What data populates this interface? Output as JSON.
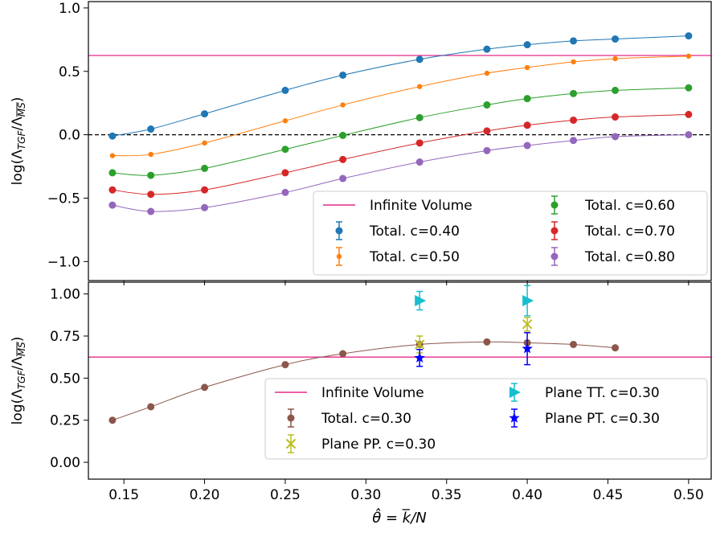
{
  "colors": {
    "infinite_volume": "#e7298a",
    "c040": "#1f77b4",
    "c050": "#ff7f0e",
    "c060": "#2ca02c",
    "c070": "#d62728",
    "c080": "#9467bd",
    "c030": "#8c564b",
    "plane_pp": "#bcbd22",
    "plane_tt": "#17becf",
    "plane_pt": "#0000ff"
  },
  "chart_data": [
    {
      "type": "line",
      "ylabel": "log(Λ_TGF/Λ_MS)",
      "ylim": [
        -1.15,
        1.05
      ],
      "xlim": [
        0.128,
        0.514
      ],
      "y_ticks": [
        "−1.0",
        "−0.5",
        "0.0",
        "0.5",
        "1.0"
      ],
      "y_tick_values": [
        -1.0,
        -0.5,
        0.0,
        0.5,
        1.0
      ],
      "zero_reference_line": 0.0,
      "infinite_volume": 0.625,
      "legend_position": "lower-right",
      "legend": [
        {
          "label": "Infinite Volume",
          "kind": "line",
          "color_key": "infinite_volume"
        },
        {
          "label": "Total. c=0.40",
          "kind": "marker",
          "color_key": "c040"
        },
        {
          "label": "Total. c=0.50",
          "kind": "marker-small",
          "color_key": "c050"
        },
        {
          "label": "Total. c=0.60",
          "kind": "marker",
          "color_key": "c060"
        },
        {
          "label": "Total. c=0.70",
          "kind": "marker",
          "color_key": "c070"
        },
        {
          "label": "Total. c=0.80",
          "kind": "marker",
          "color_key": "c080"
        }
      ],
      "series": [
        {
          "name": "Total. c=0.40",
          "color_key": "c040",
          "small": false,
          "x": [
            0.1429,
            0.1667,
            0.2,
            0.25,
            0.2857,
            0.3333,
            0.375,
            0.4,
            0.4286,
            0.4545,
            0.5
          ],
          "y": [
            -0.01,
            0.045,
            0.165,
            0.35,
            0.47,
            0.595,
            0.675,
            0.71,
            0.74,
            0.755,
            0.78
          ]
        },
        {
          "name": "Total. c=0.50",
          "color_key": "c050",
          "small": true,
          "x": [
            0.1429,
            0.1667,
            0.2,
            0.25,
            0.2857,
            0.3333,
            0.375,
            0.4,
            0.4286,
            0.4545,
            0.5
          ],
          "y": [
            -0.165,
            -0.155,
            -0.065,
            0.11,
            0.235,
            0.38,
            0.485,
            0.53,
            0.575,
            0.6,
            0.62
          ]
        },
        {
          "name": "Total. c=0.60",
          "color_key": "c060",
          "small": false,
          "x": [
            0.1429,
            0.1667,
            0.2,
            0.25,
            0.2857,
            0.3333,
            0.375,
            0.4,
            0.4286,
            0.4545,
            0.5
          ],
          "y": [
            -0.3,
            -0.32,
            -0.265,
            -0.115,
            -0.005,
            0.135,
            0.235,
            0.285,
            0.325,
            0.35,
            0.37
          ]
        },
        {
          "name": "Total. c=0.70",
          "color_key": "c070",
          "small": false,
          "x": [
            0.1429,
            0.1667,
            0.2,
            0.25,
            0.2857,
            0.3333,
            0.375,
            0.4,
            0.4286,
            0.4545,
            0.5
          ],
          "y": [
            -0.435,
            -0.47,
            -0.435,
            -0.3,
            -0.195,
            -0.065,
            0.03,
            0.075,
            0.115,
            0.14,
            0.16
          ]
        },
        {
          "name": "Total. c=0.80",
          "color_key": "c080",
          "small": false,
          "x": [
            0.1429,
            0.1667,
            0.2,
            0.25,
            0.2857,
            0.3333,
            0.375,
            0.4,
            0.4286,
            0.4545,
            0.5
          ],
          "y": [
            -0.555,
            -0.605,
            -0.575,
            -0.455,
            -0.345,
            -0.215,
            -0.125,
            -0.085,
            -0.045,
            -0.015,
            0.0
          ]
        }
      ]
    },
    {
      "type": "line",
      "xlabel": "θ̂ = k̅/N",
      "ylabel": "log(Λ_TGF/Λ_MS)",
      "ylim": [
        -0.1,
        1.07
      ],
      "xlim": [
        0.128,
        0.514
      ],
      "x_ticks": [
        "0.15",
        "0.20",
        "0.25",
        "0.30",
        "0.35",
        "0.40",
        "0.45",
        "0.50"
      ],
      "x_tick_values": [
        0.15,
        0.2,
        0.25,
        0.3,
        0.35,
        0.4,
        0.45,
        0.5
      ],
      "y_ticks": [
        "0.00",
        "0.25",
        "0.50",
        "0.75",
        "1.00"
      ],
      "y_tick_values": [
        0.0,
        0.25,
        0.5,
        0.75,
        1.0
      ],
      "infinite_volume": 0.625,
      "legend_position": "lower-right",
      "legend": [
        {
          "label": "Infinite Volume",
          "kind": "line",
          "color_key": "infinite_volume"
        },
        {
          "label": "Total. c=0.30",
          "kind": "marker",
          "color_key": "c030"
        },
        {
          "label": "Plane PP. c=0.30",
          "kind": "x",
          "color_key": "plane_pp"
        },
        {
          "label": "Plane TT. c=0.30",
          "kind": "triangle",
          "color_key": "plane_tt"
        },
        {
          "label": "Plane PT. c=0.30",
          "kind": "star",
          "color_key": "plane_pt"
        }
      ],
      "series": [
        {
          "name": "Total. c=0.30",
          "color_key": "c030",
          "marker": "circle",
          "x": [
            0.1429,
            0.1667,
            0.2,
            0.25,
            0.2857,
            0.3333,
            0.375,
            0.4,
            0.4286,
            0.4545
          ],
          "y": [
            0.25,
            0.33,
            0.445,
            0.58,
            0.645,
            0.7,
            0.715,
            0.71,
            0.7,
            0.68
          ]
        },
        {
          "name": "Plane PP. c=0.30",
          "color_key": "plane_pp",
          "marker": "x",
          "x": [
            0.3333,
            0.4
          ],
          "y": [
            0.7,
            0.82
          ],
          "err": [
            0.05,
            0.04
          ]
        },
        {
          "name": "Plane TT. c=0.30",
          "color_key": "plane_tt",
          "marker": "triangle",
          "x": [
            0.3333,
            0.4
          ],
          "y": [
            0.96,
            0.96
          ],
          "err": [
            0.055,
            0.09
          ]
        },
        {
          "name": "Plane PT. c=0.30",
          "color_key": "plane_pt",
          "marker": "star",
          "x": [
            0.3333,
            0.4
          ],
          "y": [
            0.62,
            0.675
          ],
          "err": [
            0.05,
            0.095
          ]
        }
      ]
    }
  ]
}
